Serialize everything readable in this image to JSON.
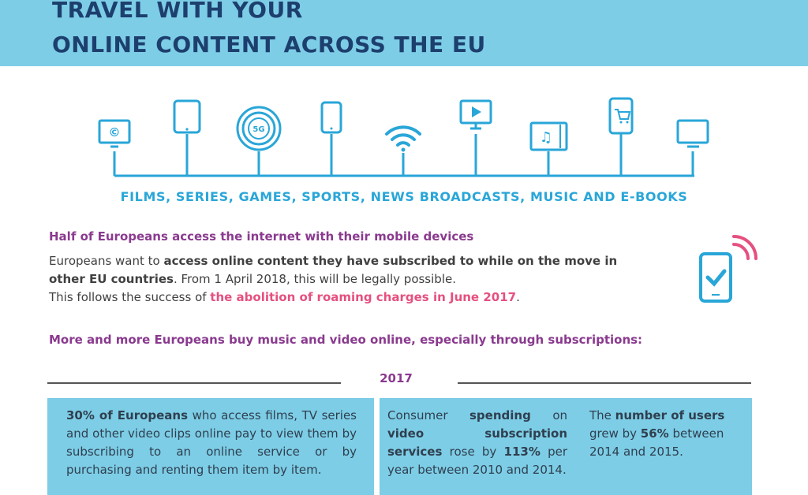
{
  "header": {
    "title_line1": "TRAVEL WITH YOUR",
    "title_line2": "ONLINE CONTENT ACROSS THE EU"
  },
  "devices": {
    "icons": [
      "tv-copyright-icon",
      "tablet-icon",
      "5g-signal-icon",
      "smartphone-icon",
      "wifi-icon",
      "video-monitor-icon",
      "music-tablet-icon",
      "shopping-phone-icon",
      "tv-icon"
    ],
    "icon_5g_text": "5G",
    "icon_copyright_text": "©",
    "content_types": "FILMS, SERIES, GAMES, SPORTS, NEWS BROADCASTS, MUSIC AND E-BOOKS"
  },
  "mobile_section": {
    "heading": "Half of Europeans access the internet with their mobile devices",
    "p1_pre": "Europeans want to ",
    "p1_bold": "access online content they have subscribed to while on the move in other EU countries",
    "p1_post": ". From 1 April 2018, this will be legally possible.",
    "p2_pre": "This follows the success of ",
    "p2_pink": "the abolition of roaming charges in June 2017",
    "p2_post": "."
  },
  "online_section": {
    "heading": "More and more Europeans buy music and video online, especially through subscriptions:",
    "year": "2017"
  },
  "stats": {
    "box1_bold": "30% of Europeans",
    "box1_text": " who access films, TV series and other video clips online pay to view them by subscribing to an online service or by purchasing and renting them item by item.",
    "box2_pre": "Consumer ",
    "box2_bold1": "spending",
    "box2_mid": " on ",
    "box2_bold2": "video subscription services",
    "box2_mid2": " rose by ",
    "box2_bold3": "113%",
    "box2_post": " per year between 2010 and 2014.",
    "box3_pre": "The ",
    "box3_bold1": "number of users",
    "box3_mid": " grew by ",
    "box3_bold2": "56%",
    "box3_post": " between 2014 and 2015."
  },
  "colors": {
    "header_bg": "#7dcde6",
    "title": "#1d3f6e",
    "icon_blue": "#29a6d8",
    "heading_purple": "#8a3a8f",
    "pink": "#e5507f"
  }
}
